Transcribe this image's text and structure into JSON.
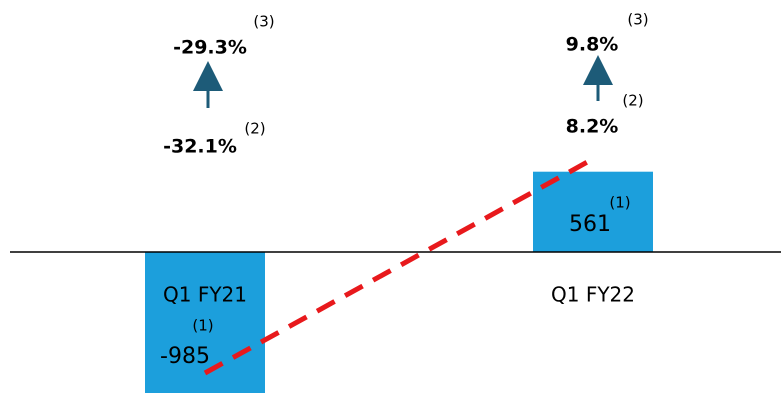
{
  "chart_data": {
    "type": "bar",
    "categories": [
      "Q1 FY21",
      "Q1 FY22"
    ],
    "values": [
      -985,
      561
    ],
    "value_notes": [
      "(1)",
      "(1)"
    ],
    "color": "#1c9fdc",
    "trend_color": "#e8191c",
    "growth": [
      {
        "reported": "-32.1%",
        "reported_note": "(2)",
        "adjusted": "-29.3%",
        "adjusted_note": "(3)"
      },
      {
        "reported": "8.2%",
        "reported_note": "(2)",
        "adjusted": "9.8%",
        "adjusted_note": "(3)"
      }
    ]
  }
}
